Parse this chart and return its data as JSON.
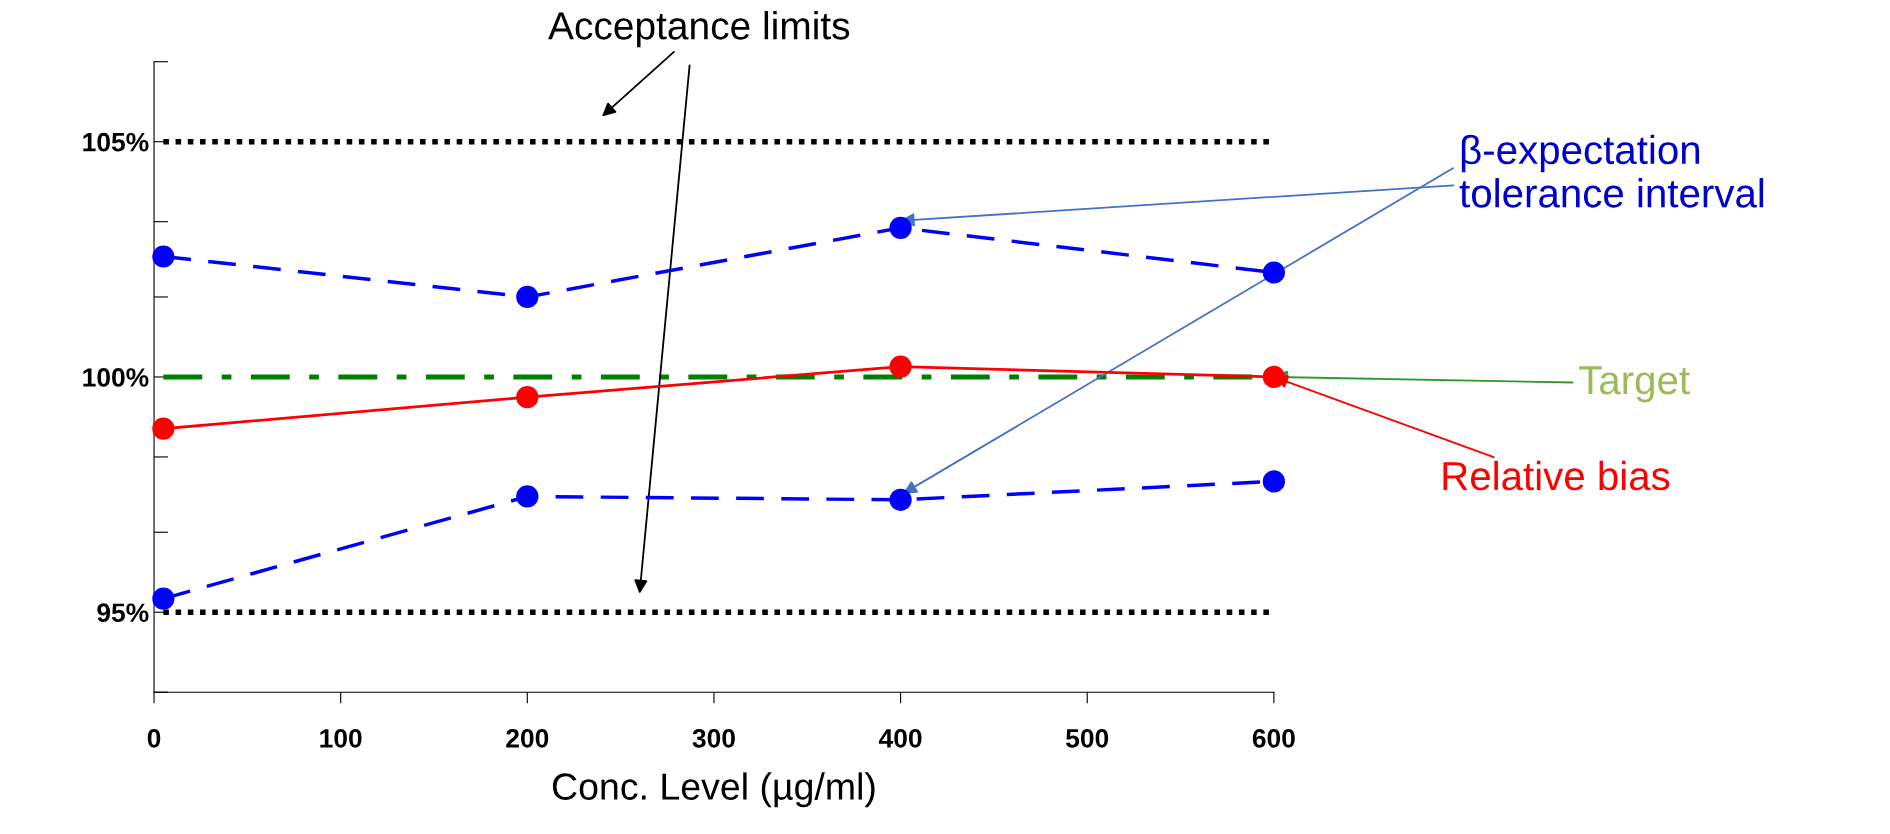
{
  "chart_data": {
    "type": "line",
    "xlabel": "Conc. Level (µg/ml)",
    "x": [
      5,
      200,
      400,
      600
    ],
    "series": [
      {
        "color": "#0000ff",
        "values": [
          102.56,
          101.7,
          103.17,
          102.22
        ],
        "line_style": "dashed"
      },
      {
        "color": "#ff0000",
        "values": [
          98.9,
          99.57,
          100.22,
          100.0
        ],
        "line_style": "solid"
      },
      {
        "color": "#0000ff",
        "values": [
          95.29,
          97.46,
          97.39,
          97.78
        ],
        "line_style": "dashed"
      }
    ],
    "marker": "circle",
    "xlim": [
      0,
      600
    ],
    "xticks": [
      0,
      100,
      200,
      300,
      400,
      500,
      600
    ],
    "ylim": [
      93.3,
      106.7
    ],
    "yticks": [
      {
        "value": 93.3,
        "label": null
      },
      {
        "value": 95,
        "label": "95%"
      },
      {
        "value": 96.7,
        "label": null
      },
      {
        "value": 98.3,
        "label": null
      },
      {
        "value": 100,
        "label": "100%"
      },
      {
        "value": 101.7,
        "label": null
      },
      {
        "value": 103.3,
        "label": null
      },
      {
        "value": 105,
        "label": "105%"
      },
      {
        "value": 106.7,
        "label": null
      }
    ],
    "ref_lines": [
      {
        "axis": "y",
        "value": 105,
        "color": "#000000",
        "line_style": "dotted"
      },
      {
        "axis": "y",
        "value": 100,
        "color": "#008000",
        "line_style": "dashdot"
      },
      {
        "axis": "y",
        "value": 95,
        "color": "#000000",
        "line_style": "dotted"
      }
    ],
    "annotations": [
      {
        "text": "Acceptance limits",
        "x": 260,
        "y": 105
      },
      {
        "text": "β-expectation\ntolerance interval",
        "x": 400,
        "y": 103.17
      },
      {
        "text": "Target",
        "x": 600,
        "y": 100
      },
      {
        "text": "Relative bias",
        "x": 600,
        "y": 100
      }
    ],
    "grid": false,
    "legend": false
  }
}
